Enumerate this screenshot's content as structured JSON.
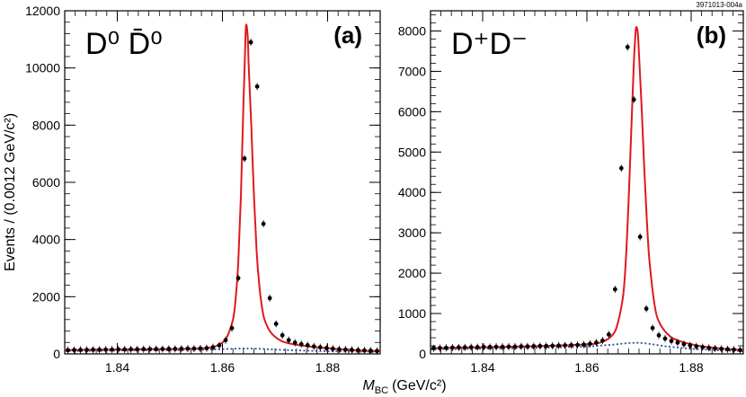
{
  "figure_code": "3971013-004a",
  "ylabel": "Events / (0.0012 GeV/c²)",
  "xlabel_prefix": "M",
  "xlabel_sub": "BC",
  "xlabel_units": "(GeV/c²)",
  "chart_data": [
    {
      "type": "scatter",
      "panel_label": "(a)",
      "decay_label": "D⁰ D̄⁰",
      "xlabel": "M_BC (GeV/c²)",
      "ylabel": "Events / (0.0012 GeV/c²)",
      "xlim": [
        1.83,
        1.89
      ],
      "ylim": [
        0,
        12000
      ],
      "xticks": [
        1.84,
        1.86,
        1.88
      ],
      "yticks": [
        0,
        2000,
        4000,
        6000,
        8000,
        10000,
        12000
      ],
      "colors": {
        "data": "#000000",
        "fit": "#e0191e",
        "background": "#2e4a9e"
      },
      "series": [
        {
          "kind": "data",
          "x": [
            1.8306,
            1.8318,
            1.833,
            1.8342,
            1.8354,
            1.8366,
            1.8378,
            1.839,
            1.8402,
            1.8414,
            1.8426,
            1.8438,
            1.845,
            1.8462,
            1.8474,
            1.8486,
            1.8498,
            1.851,
            1.8522,
            1.8534,
            1.8546,
            1.8558,
            1.857,
            1.8582,
            1.8594,
            1.8606,
            1.8618,
            1.863,
            1.8642,
            1.8654,
            1.8666,
            1.8678,
            1.869,
            1.8702,
            1.8714,
            1.8726,
            1.8738,
            1.875,
            1.8762,
            1.8774,
            1.8786,
            1.8798,
            1.881,
            1.8822,
            1.8834,
            1.8846,
            1.8858,
            1.887,
            1.8882,
            1.8894
          ],
          "y": [
            130,
            135,
            140,
            140,
            145,
            145,
            150,
            150,
            155,
            155,
            160,
            160,
            165,
            165,
            170,
            170,
            175,
            175,
            180,
            185,
            185,
            190,
            200,
            230,
            300,
            480,
            900,
            2650,
            6830,
            10900,
            9350,
            4550,
            1950,
            1050,
            650,
            480,
            390,
            340,
            300,
            260,
            230,
            200,
            180,
            160,
            150,
            140,
            130,
            120,
            110,
            100
          ]
        },
        {
          "kind": "fit",
          "x": [
            1.83,
            1.835,
            1.84,
            1.845,
            1.85,
            1.855,
            1.858,
            1.86,
            1.861,
            1.862,
            1.8625,
            1.863,
            1.8635,
            1.864,
            1.8643,
            1.8645,
            1.8648,
            1.865,
            1.8655,
            1.866,
            1.8665,
            1.867,
            1.8675,
            1.868,
            1.869,
            1.87,
            1.871,
            1.872,
            1.874,
            1.876,
            1.878,
            1.88,
            1.882,
            1.884,
            1.886,
            1.888,
            1.89
          ],
          "y": [
            130,
            140,
            150,
            160,
            170,
            185,
            230,
            400,
            650,
            1200,
            1900,
            3200,
            5500,
            8800,
            10600,
            11500,
            11100,
            10000,
            7900,
            5500,
            3600,
            2400,
            1650,
            1200,
            800,
            600,
            470,
            400,
            320,
            270,
            230,
            195,
            165,
            140,
            120,
            105,
            95
          ]
        },
        {
          "kind": "background",
          "x": [
            1.83,
            1.84,
            1.85,
            1.855,
            1.86,
            1.863,
            1.865,
            1.867,
            1.87,
            1.875,
            1.88,
            1.885,
            1.89
          ],
          "y": [
            100,
            115,
            130,
            140,
            165,
            185,
            190,
            180,
            150,
            115,
            95,
            80,
            70
          ]
        }
      ]
    },
    {
      "type": "scatter",
      "panel_label": "(b)",
      "decay_label": "D⁺D⁻",
      "xlabel": "M_BC (GeV/c²)",
      "ylabel": "",
      "xlim": [
        1.83,
        1.89
      ],
      "ylim": [
        0,
        8500
      ],
      "xticks": [
        1.84,
        1.86,
        1.88
      ],
      "yticks": [
        0,
        1000,
        2000,
        3000,
        4000,
        5000,
        6000,
        7000,
        8000
      ],
      "colors": {
        "data": "#000000",
        "fit": "#e0191e",
        "background": "#2e4a9e"
      },
      "series": [
        {
          "kind": "data",
          "x": [
            1.8306,
            1.8318,
            1.833,
            1.8342,
            1.8354,
            1.8366,
            1.8378,
            1.839,
            1.8402,
            1.8414,
            1.8426,
            1.8438,
            1.845,
            1.8462,
            1.8474,
            1.8486,
            1.8498,
            1.851,
            1.8522,
            1.8534,
            1.8546,
            1.8558,
            1.857,
            1.8582,
            1.8594,
            1.8606,
            1.8618,
            1.863,
            1.8642,
            1.8654,
            1.8666,
            1.8678,
            1.869,
            1.8702,
            1.8714,
            1.8726,
            1.8738,
            1.875,
            1.8762,
            1.8774,
            1.8786,
            1.8798,
            1.881,
            1.8822,
            1.8834,
            1.8846,
            1.8858,
            1.887,
            1.8882,
            1.8894
          ],
          "y": [
            140,
            145,
            150,
            155,
            160,
            160,
            165,
            165,
            170,
            170,
            175,
            175,
            180,
            180,
            185,
            185,
            190,
            195,
            195,
            200,
            205,
            210,
            215,
            220,
            230,
            250,
            280,
            330,
            480,
            1600,
            4600,
            7600,
            6300,
            2900,
            1120,
            640,
            460,
            380,
            320,
            280,
            240,
            210,
            185,
            165,
            150,
            135,
            125,
            115,
            105,
            95
          ]
        },
        {
          "kind": "fit",
          "x": [
            1.83,
            1.84,
            1.85,
            1.86,
            1.863,
            1.865,
            1.866,
            1.867,
            1.8675,
            1.868,
            1.8685,
            1.869,
            1.8693,
            1.8695,
            1.8698,
            1.87,
            1.8705,
            1.871,
            1.8715,
            1.872,
            1.873,
            1.874,
            1.876,
            1.878,
            1.88,
            1.882,
            1.884,
            1.886,
            1.888,
            1.89
          ],
          "y": [
            140,
            165,
            190,
            235,
            300,
            480,
            800,
            1500,
            2400,
            3800,
            5500,
            7200,
            7900,
            8100,
            7900,
            7400,
            6100,
            4600,
            3300,
            2300,
            1200,
            750,
            430,
            310,
            240,
            190,
            155,
            130,
            110,
            95
          ]
        },
        {
          "kind": "background",
          "x": [
            1.83,
            1.84,
            1.85,
            1.86,
            1.865,
            1.868,
            1.87,
            1.872,
            1.875,
            1.88,
            1.885,
            1.89
          ],
          "y": [
            110,
            130,
            150,
            180,
            230,
            270,
            275,
            250,
            190,
            125,
            90,
            70
          ]
        }
      ]
    }
  ]
}
